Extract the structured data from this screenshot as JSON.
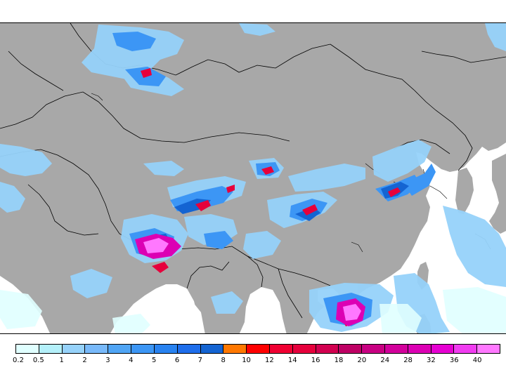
{
  "map": {
    "land_color": "#a8a8a8",
    "ocean_color": "#ffffff",
    "border_color": "#000000"
  },
  "legend": {
    "labels": [
      "0.2",
      "0.5",
      "1",
      "2",
      "3",
      "4",
      "5",
      "6",
      "7",
      "8",
      "10",
      "12",
      "14",
      "16",
      "18",
      "20",
      "24",
      "28",
      "32",
      "36",
      "40"
    ],
    "colors": [
      "#e0ffff",
      "#b4f0fa",
      "#96d2fa",
      "#78b9fa",
      "#50a5f5",
      "#3c96f5",
      "#2882f0",
      "#1e6eeb",
      "#1464d2",
      "#ff7800",
      "#ff0000",
      "#f00032",
      "#e6003c",
      "#d20050",
      "#be0064",
      "#c80082",
      "#d2009b",
      "#dc00b4",
      "#e600d2",
      "#f03cf0",
      "#ff78ff"
    ]
  }
}
